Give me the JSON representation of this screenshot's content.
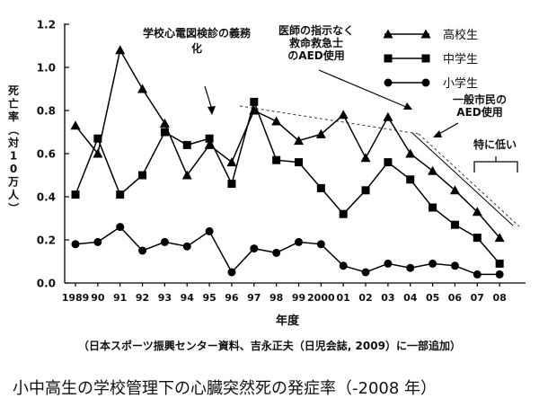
{
  "chart_data": {
    "type": "line",
    "categories": [
      "1989",
      "90",
      "91",
      "92",
      "93",
      "94",
      "95",
      "96",
      "97",
      "98",
      "99",
      "2000",
      "01",
      "02",
      "03",
      "04",
      "05",
      "06",
      "07",
      "08"
    ],
    "xlabel": "年度",
    "ylabel": "死亡率（対10万人）",
    "ylim": [
      0,
      1.2
    ],
    "yticks": [
      "0.0",
      "0.2",
      "0.4",
      "0.6",
      "0.8",
      "1.0",
      "1.2"
    ],
    "grid": false,
    "legend_position": "top-right",
    "series": [
      {
        "name": "高校生",
        "marker": "triangle",
        "values": [
          0.73,
          0.6,
          1.08,
          0.9,
          0.74,
          0.5,
          0.64,
          0.56,
          0.8,
          0.75,
          0.66,
          0.69,
          0.78,
          0.58,
          0.77,
          0.6,
          0.52,
          0.43,
          0.33,
          0.21
        ]
      },
      {
        "name": "中学生",
        "marker": "square",
        "values": [
          0.41,
          0.67,
          0.41,
          0.5,
          0.7,
          0.64,
          0.67,
          0.46,
          0.84,
          0.57,
          0.56,
          0.44,
          0.32,
          0.43,
          0.56,
          0.48,
          0.35,
          0.27,
          0.21,
          0.09
        ]
      },
      {
        "name": "小学生",
        "marker": "circle",
        "values": [
          0.18,
          0.19,
          0.26,
          0.15,
          0.19,
          0.17,
          0.24,
          0.05,
          0.16,
          0.14,
          0.19,
          0.18,
          0.08,
          0.05,
          0.09,
          0.07,
          0.09,
          0.08,
          0.04,
          0.04
        ]
      }
    ],
    "annotations": {
      "ecg_screening": "学校心電図検診の義務化",
      "aed_medical": [
        "医師の指示なく",
        "救命救急士",
        "のAED使用"
      ],
      "aed_public": [
        "一般市民の",
        "AED使用"
      ],
      "especially_low": "特に低い"
    }
  },
  "source_note": "（日本スポーツ振興センター資料、吉永正夫（日児会誌, 2009）に一部追加）",
  "caption": "小中高生の学校管理下の心臓突然死の発症率（-2008 年）"
}
